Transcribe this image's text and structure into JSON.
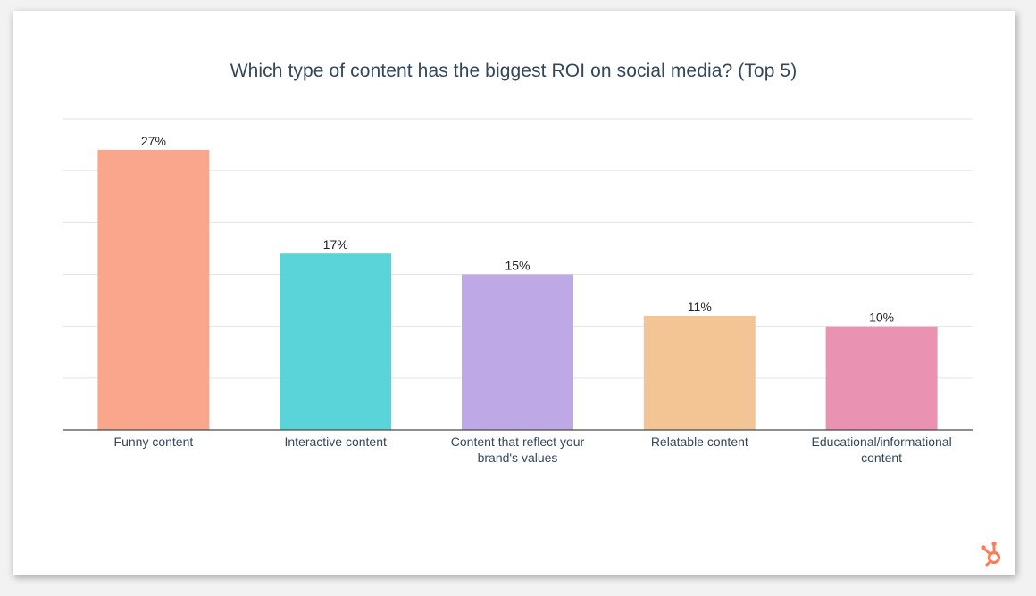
{
  "chart_data": {
    "type": "bar",
    "title": "Which type of content has the biggest ROI on social media? (Top 5)",
    "categories": [
      [
        "Funny content"
      ],
      [
        "Interactive content"
      ],
      [
        "Content that reflect your",
        "brand's values"
      ],
      [
        "Relatable content"
      ],
      [
        "Educational/informational",
        "content"
      ]
    ],
    "values": [
      27,
      17,
      15,
      11,
      10
    ],
    "data_labels": [
      "27%",
      "17%",
      "15%",
      "11%",
      "10%"
    ],
    "colors": [
      "#f9a68d",
      "#5ad4d9",
      "#bea9e6",
      "#f3c494",
      "#e992b1"
    ],
    "ylim": [
      0,
      30
    ],
    "grid": true,
    "xlabel": "",
    "ylabel": ""
  },
  "brand": {
    "logo_icon": "hubspot-sprocket-icon",
    "logo_color": "#ff7a59"
  }
}
